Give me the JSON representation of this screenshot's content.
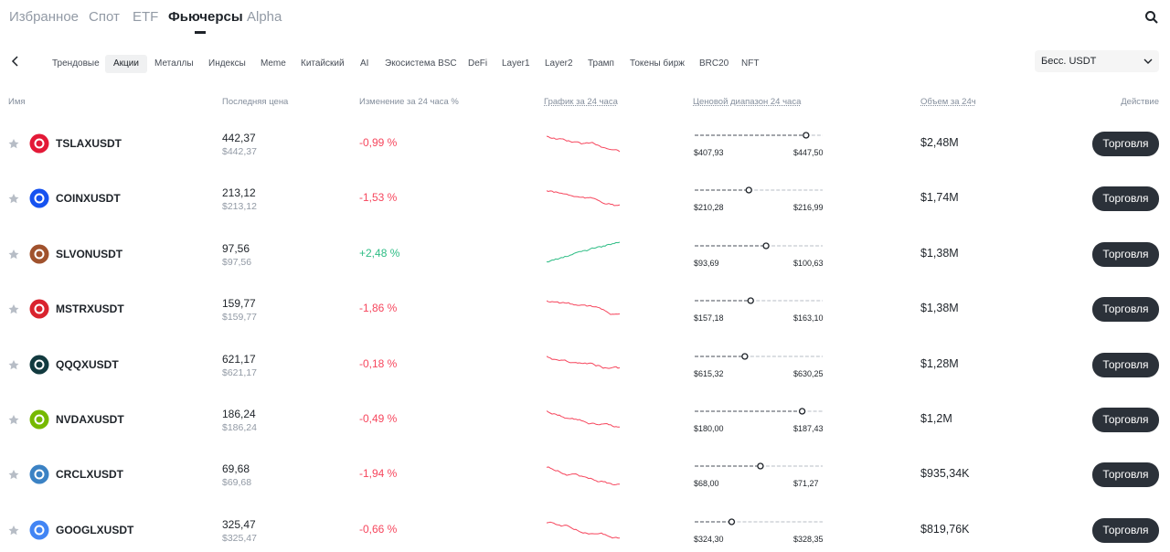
{
  "nav": {
    "tabs": [
      "Избранное",
      "Спот",
      "ETF",
      "Фьючерсы",
      "Alpha"
    ],
    "selected_tab": 3
  },
  "filters": {
    "items": [
      "Трендовые",
      "Акции",
      "Металлы",
      "Индексы",
      "Meme",
      "Китайский",
      "AI",
      "Экосистема BSC",
      "DeFi",
      "Layer1",
      "Layer2",
      "Трамп",
      "Токены бирж",
      "BRC20",
      "NFT"
    ],
    "selected": 1,
    "dropdown": "Бесс. USDT"
  },
  "table": {
    "headers": [
      "Имя",
      "Последняя цена",
      "Изменение за 24 часа %",
      "График за 24 часа",
      "Ценовой диапазон 24 часа",
      "Объем за 24ч",
      "Действие"
    ],
    "action_label": "Торговля",
    "rows": [
      {
        "symbol": "TSLAXUSDT",
        "icon_color": "#e31937",
        "price": "442,37",
        "price_sub": "$442,37",
        "change": "-0,99 %",
        "low": "$407,93",
        "high": "$447,50",
        "volume": "$2,48M"
      },
      {
        "symbol": "COINXUSDT",
        "icon_color": "#1652f0",
        "price": "213,12",
        "price_sub": "$213,12",
        "change": "-1,53 %",
        "low": "$210,28",
        "high": "$216,99",
        "volume": "$1,74M"
      },
      {
        "symbol": "SLVONUSDT",
        "icon_color": "#a0522d",
        "price": "97,56",
        "price_sub": "$97,56",
        "change": "+2,48 %",
        "low": "$93,69",
        "high": "$100,63",
        "volume": "$1,38M"
      },
      {
        "symbol": "MSTRXUSDT",
        "icon_color": "#d9232e",
        "price": "159,77",
        "price_sub": "$159,77",
        "change": "-1,86 %",
        "low": "$157,18",
        "high": "$163,10",
        "volume": "$1,38M"
      },
      {
        "symbol": "QQQXUSDT",
        "icon_color": "#123a3f",
        "price": "621,17",
        "price_sub": "$621,17",
        "change": "-0,18 %",
        "low": "$615,32",
        "high": "$630,25",
        "volume": "$1,28M"
      },
      {
        "symbol": "NVDAXUSDT",
        "icon_color": "#76b900",
        "price": "186,24",
        "price_sub": "$186,24",
        "change": "-0,49 %",
        "low": "$180,00",
        "high": "$187,43",
        "volume": "$1,2M"
      },
      {
        "symbol": "CRCLXUSDT",
        "icon_color": "#3b82c4",
        "price": "69,68",
        "price_sub": "$69,68",
        "change": "-1,94 %",
        "low": "$68,00",
        "high": "$71,27",
        "volume": "$935,34K"
      },
      {
        "symbol": "GOOGLXUSDT",
        "icon_color": "#4285f4",
        "price": "325,47",
        "price_sub": "$325,47",
        "change": "-0,66 %",
        "low": "$324,30",
        "high": "$328,35",
        "volume": "$819,76K"
      }
    ]
  }
}
